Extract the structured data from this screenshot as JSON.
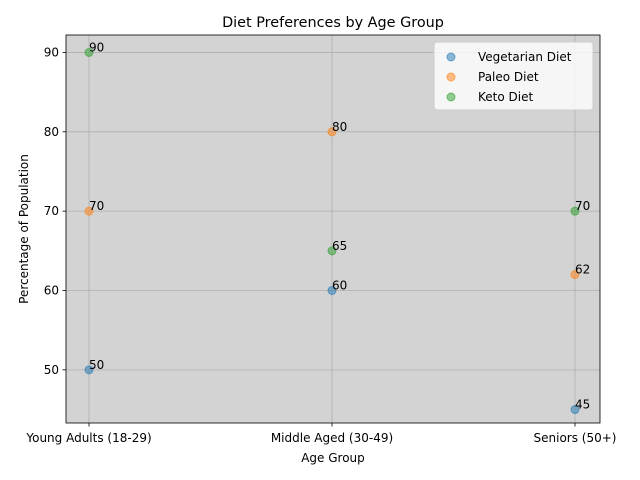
{
  "chart_data": {
    "type": "scatter",
    "title": "Diet Preferences by Age Group",
    "xlabel": "Age Group",
    "ylabel": "Percentage of Population",
    "categories": [
      "Young Adults (18-29)",
      "Middle Aged (30-49)",
      "Seniors (50+)"
    ],
    "yticks": [
      50,
      60,
      70,
      80,
      90
    ],
    "ylim": [
      43.3,
      92.2
    ],
    "grid": true,
    "legend_position": "upper-right",
    "background_color": "#d3d3d3",
    "series": [
      {
        "name": "Vegetarian Diet",
        "color": "#1f77b4",
        "values": [
          50,
          60,
          45
        ]
      },
      {
        "name": "Paleo Diet",
        "color": "#ff7f0e",
        "values": [
          70,
          80,
          62
        ]
      },
      {
        "name": "Keto Diet",
        "color": "#2ca02c",
        "values": [
          90,
          65,
          70
        ]
      }
    ]
  }
}
